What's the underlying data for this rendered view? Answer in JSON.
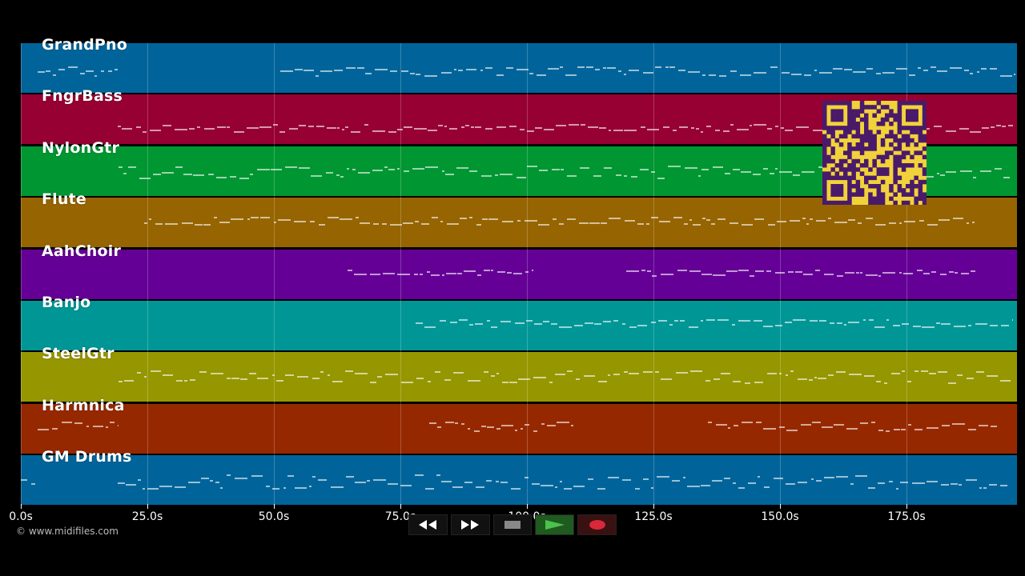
{
  "tracks": [
    {
      "name": "GrandPno",
      "color": "#00649a"
    },
    {
      "name": "FngrBass",
      "color": "#960032"
    },
    {
      "name": "NylonGtr",
      "color": "#009632"
    },
    {
      "name": "Flute",
      "color": "#966400"
    },
    {
      "name": "AahChoir",
      "color": "#640096"
    },
    {
      "name": "Banjo",
      "color": "#009696"
    },
    {
      "name": "SteelGtr",
      "color": "#969600"
    },
    {
      "name": "Harmnica",
      "color": "#962800"
    },
    {
      "name": "GM Drums",
      "color": "#00649a"
    }
  ],
  "timeline": {
    "ticks": [
      "0.0s",
      "25.0s",
      "50.0s",
      "75.0s",
      "100.0s",
      "125.0s",
      "150.0s",
      "175.0s"
    ]
  },
  "copyright": "© www.midifiles.com",
  "transport": {
    "rewind_icon": "rewind-icon",
    "forward_icon": "fast-forward-icon",
    "stop_icon": "stop-icon",
    "play_icon": "play-icon",
    "record_icon": "record-icon"
  },
  "overlay": {
    "qr_color": "#f2d23a",
    "qr_dark": "#4a1a6a"
  }
}
